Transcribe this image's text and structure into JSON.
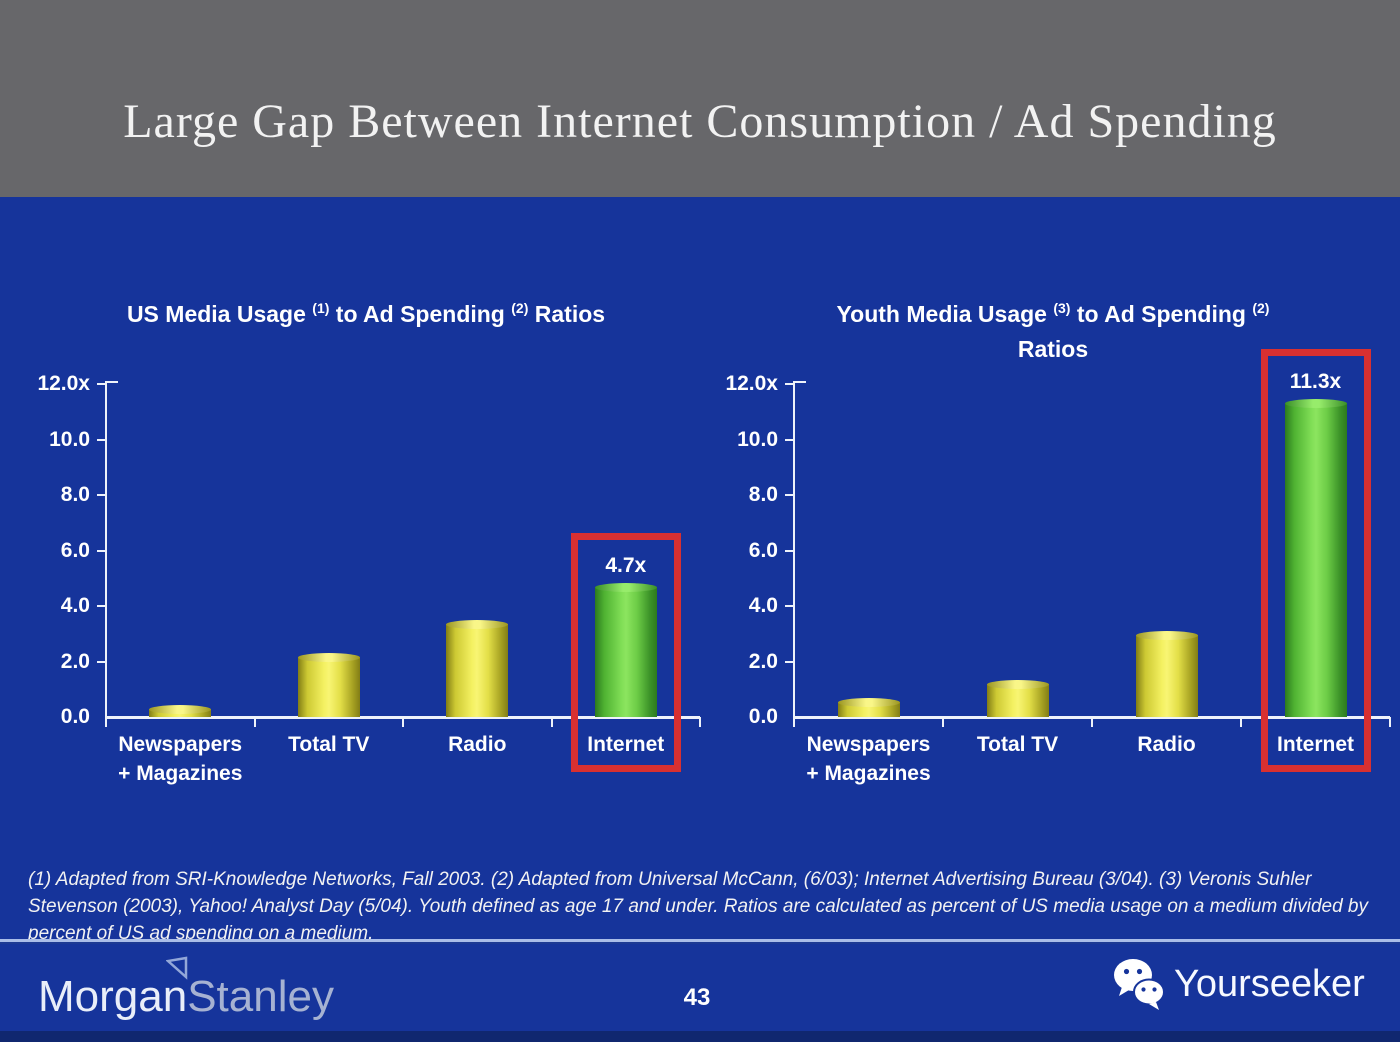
{
  "header": {
    "title": "Large Gap Between Internet Consumption / Ad Spending"
  },
  "chart_data": [
    {
      "type": "bar",
      "name": "us-media-usage-to-ad-spending-ratios",
      "title_lines": [
        [
          {
            "text": "US Media Usage "
          },
          {
            "sup": "(1)"
          },
          {
            "text": " to Ad Spending "
          },
          {
            "sup": "(2)"
          },
          {
            "text": " Ratios"
          }
        ]
      ],
      "categories": [
        [
          "Newspapers",
          "+ Magazines"
        ],
        [
          "Total TV"
        ],
        [
          "Radio"
        ],
        [
          "Internet"
        ]
      ],
      "values": [
        0.3,
        2.15,
        3.35,
        4.7
      ],
      "bar_colors": [
        "yellow",
        "yellow",
        "yellow",
        "green"
      ],
      "value_labels": [
        null,
        null,
        null,
        "4.7x"
      ],
      "highlight_index": 3,
      "xlabel": "",
      "ylabel": "",
      "ylim": [
        0,
        12
      ],
      "grid": false,
      "legend": false,
      "y_ticks": [
        {
          "value": 12,
          "label": "12.0x"
        },
        {
          "value": 10,
          "label": "10.0"
        },
        {
          "value": 8,
          "label": "8.0"
        },
        {
          "value": 6,
          "label": "6.0"
        },
        {
          "value": 4,
          "label": "4.0"
        },
        {
          "value": 2,
          "label": "2.0"
        },
        {
          "value": 0,
          "label": "0.0"
        }
      ]
    },
    {
      "type": "bar",
      "name": "youth-media-usage-to-ad-spending-ratios",
      "title_lines": [
        [
          {
            "text": "Youth Media Usage "
          },
          {
            "sup": "(3)"
          },
          {
            "text": " to Ad Spending "
          },
          {
            "sup": "(2)"
          }
        ],
        [
          {
            "text": "Ratios"
          }
        ]
      ],
      "categories": [
        [
          "Newspapers",
          "+ Magazines"
        ],
        [
          "Total TV"
        ],
        [
          "Radio"
        ],
        [
          "Internet"
        ]
      ],
      "values": [
        0.55,
        1.2,
        2.95,
        11.3
      ],
      "bar_colors": [
        "yellow",
        "yellow",
        "yellow",
        "green"
      ],
      "value_labels": [
        null,
        null,
        null,
        "11.3x"
      ],
      "highlight_index": 3,
      "xlabel": "",
      "ylabel": "",
      "ylim": [
        0,
        12
      ],
      "grid": false,
      "legend": false,
      "y_ticks": [
        {
          "value": 12,
          "label": "12.0x"
        },
        {
          "value": 10,
          "label": "10.0"
        },
        {
          "value": 8,
          "label": "8.0"
        },
        {
          "value": 6,
          "label": "6.0"
        },
        {
          "value": 4,
          "label": "4.0"
        },
        {
          "value": 2,
          "label": "2.0"
        },
        {
          "value": 0,
          "label": "0.0"
        }
      ]
    }
  ],
  "footnote": {
    "text": "(1) Adapted from SRI-Knowledge Networks, Fall 2003.  (2) Adapted from Universal McCann, (6/03); Internet Advertising Bureau (3/04). (3) Veronis Suhler Stevenson (2003), Yahoo! Analyst Day (5/04).  Youth defined as age 17 and under.  Ratios are calculated as percent of US media usage on a medium divided by percent of US ad spending on a medium."
  },
  "footer": {
    "brand_primary": "Morgan",
    "brand_secondary": "Stanley",
    "page_number": "43",
    "watermark": "Yourseeker"
  },
  "icons": {
    "wechat_icon": "two overlapping chat bubbles (WeChat)",
    "morgan_stanley_triangle_icon": "outlined triangle pennant"
  },
  "colors": {
    "header_gray": "#67676a",
    "slide_blue": "#16349b",
    "bar_yellow": "#e9e54d",
    "bar_green": "#62c840",
    "highlight_red": "#d83030",
    "axis_white": "#eef2fa"
  }
}
